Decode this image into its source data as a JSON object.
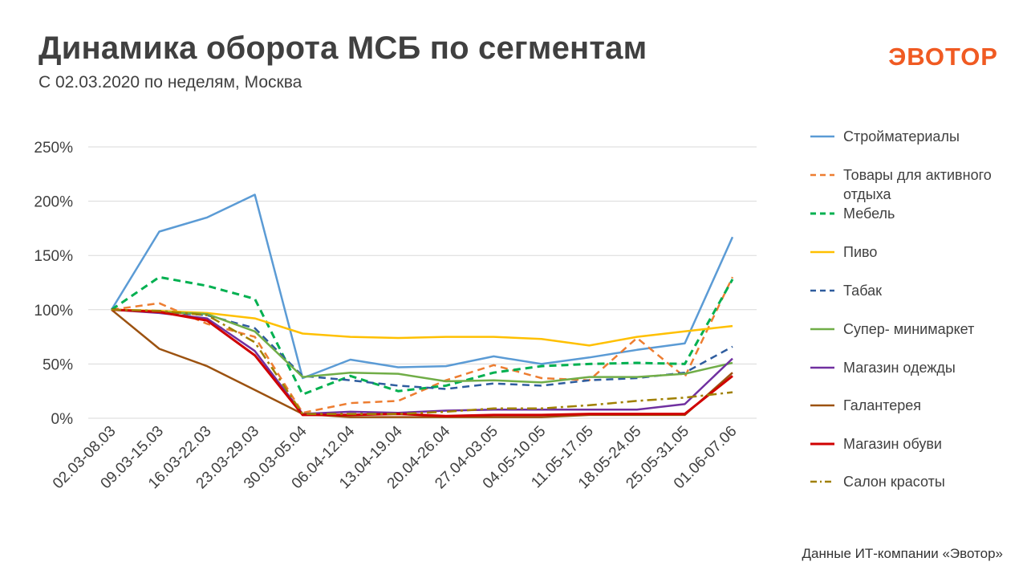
{
  "header": {
    "title": "Динамика оборота МСБ по сегментам",
    "subtitle": "С 02.03.2020 по неделям, Москва",
    "logo_text": "ЭВОТОР"
  },
  "footer": {
    "source": "Данные ИТ-компании «Эвотор»"
  },
  "colors": {
    "brand": "#f05a22",
    "grid": "#d9d9d9",
    "text": "#404040"
  },
  "chart_data": {
    "type": "line",
    "title": "",
    "xlabel": "",
    "ylabel": "",
    "ylim": [
      0,
      250
    ],
    "y_ticks": [
      0,
      50,
      100,
      150,
      200,
      250
    ],
    "y_tick_labels": [
      "0%",
      "50%",
      "100%",
      "150%",
      "200%",
      "250%"
    ],
    "grid": true,
    "legend_position": "right",
    "categories": [
      "02.03-08.03",
      "09.03-15.03",
      "16.03-22.03",
      "23.03-29.03",
      "30.03-05.04",
      "06.04-12.04",
      "13.04-19.04",
      "20.04-26.04",
      "27.04-03.05",
      "04.05-10.05",
      "11.05-17.05",
      "18.05-24.05",
      "25.05-31.05",
      "01.06-07.06"
    ],
    "series": [
      {
        "name": "Стройматериалы",
        "color": "#5b9bd5",
        "dash": "solid",
        "width": 2.5,
        "values": [
          100,
          172,
          185,
          206,
          37,
          54,
          47,
          48,
          57,
          50,
          56,
          63,
          69,
          167
        ]
      },
      {
        "name": "Товары для активного отдыха",
        "color": "#ed7d31",
        "dash": "dash",
        "width": 2.5,
        "values": [
          100,
          106,
          87,
          75,
          5,
          14,
          16,
          35,
          49,
          37,
          35,
          74,
          38,
          130
        ]
      },
      {
        "name": "Мебель",
        "color": "#00b050",
        "dash": "dash",
        "width": 3,
        "values": [
          100,
          130,
          122,
          110,
          22,
          39,
          25,
          30,
          42,
          48,
          50,
          51,
          50,
          128
        ]
      },
      {
        "name": "Пиво",
        "color": "#ffc000",
        "dash": "solid",
        "width": 2.5,
        "values": [
          100,
          99,
          97,
          92,
          78,
          75,
          74,
          75,
          75,
          73,
          67,
          75,
          80,
          85
        ]
      },
      {
        "name": "Табак",
        "color": "#2e5c9e",
        "dash": "dash",
        "width": 2.5,
        "values": [
          100,
          98,
          95,
          83,
          39,
          35,
          30,
          27,
          32,
          30,
          35,
          37,
          42,
          66
        ]
      },
      {
        "name": "Супер- минимаркет",
        "color": "#70ad47",
        "dash": "solid",
        "width": 2.5,
        "values": [
          100,
          98,
          96,
          80,
          38,
          42,
          41,
          34,
          35,
          33,
          38,
          38,
          41,
          51
        ]
      },
      {
        "name": "Магазин одежды",
        "color": "#7030a0",
        "dash": "solid",
        "width": 2.5,
        "values": [
          100,
          97,
          92,
          62,
          4,
          6,
          5,
          7,
          8,
          8,
          8,
          8,
          13,
          55
        ]
      },
      {
        "name": "Галантерея",
        "color": "#9c5210",
        "dash": "solid",
        "width": 2.5,
        "values": [
          100,
          64,
          48,
          26,
          4,
          1,
          1,
          1,
          1,
          1,
          3,
          3,
          3,
          42
        ]
      },
      {
        "name": "Магазин обуви",
        "color": "#d00000",
        "dash": "solid",
        "width": 3,
        "values": [
          100,
          98,
          90,
          58,
          3,
          3,
          4,
          2,
          3,
          3,
          4,
          4,
          4,
          39
        ]
      },
      {
        "name": "Салон красоты",
        "color": "#a08000",
        "dash": "dashdot",
        "width": 2.5,
        "values": [
          100,
          99,
          95,
          70,
          4,
          4,
          4,
          6,
          9,
          9,
          12,
          16,
          19,
          24
        ]
      }
    ]
  }
}
